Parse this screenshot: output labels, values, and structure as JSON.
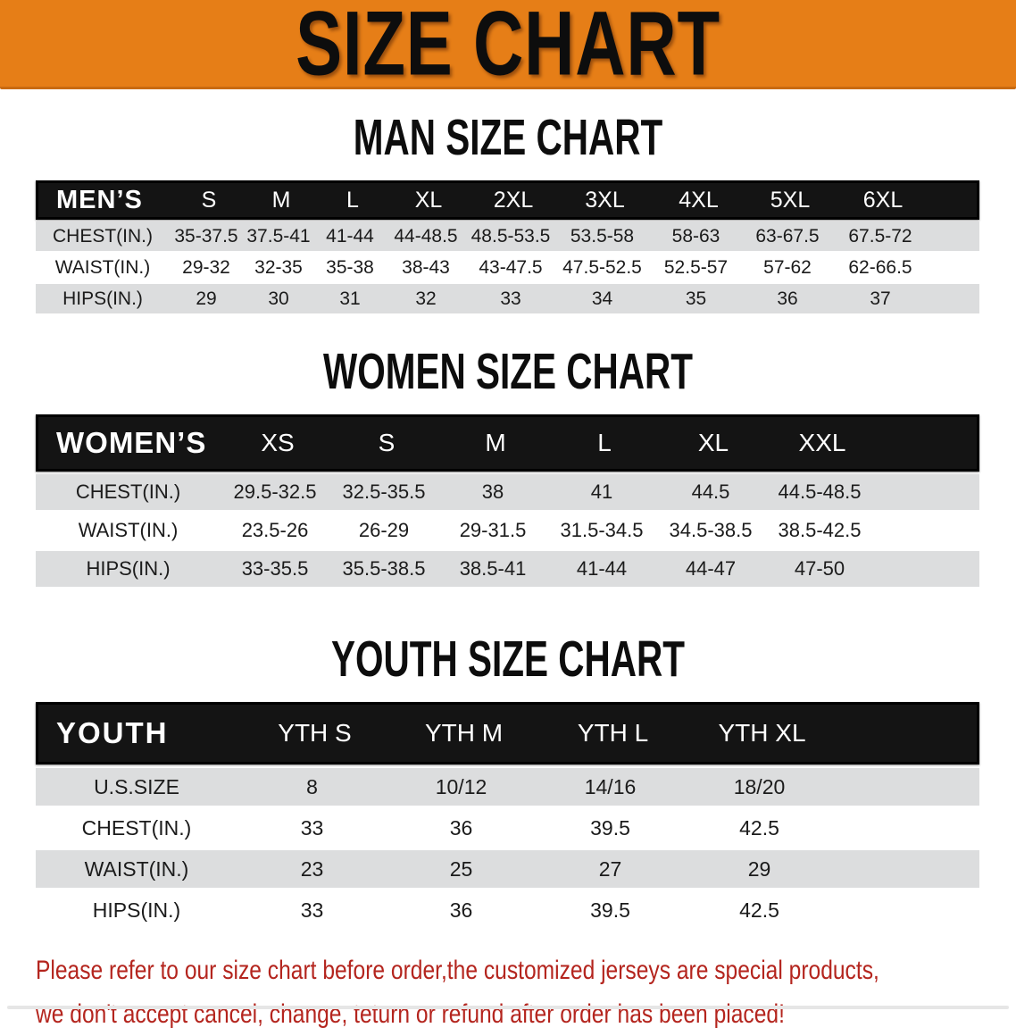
{
  "banner": {
    "title": "SIZE CHART"
  },
  "sections": {
    "men": {
      "title": "MAN SIZE CHART"
    },
    "women": {
      "title": "WOMEN SIZE CHART"
    },
    "youth": {
      "title": "YOUTH SIZE CHART"
    }
  },
  "tables": {
    "men": {
      "corner": "MEN’S",
      "columns": [
        "S",
        "M",
        "L",
        "XL",
        "2XL",
        "3XL",
        "4XL",
        "5XL",
        "6XL"
      ],
      "rows": [
        {
          "label": "CHEST(IN.)",
          "values": [
            "35-37.5",
            "37.5-41",
            "41-44",
            "44-48.5",
            "48.5-53.5",
            "53.5-58",
            "58-63",
            "63-67.5",
            "67.5-72"
          ]
        },
        {
          "label": "WAIST(IN.)",
          "values": [
            "29-32",
            "32-35",
            "35-38",
            "38-43",
            "43-47.5",
            "47.5-52.5",
            "52.5-57",
            "57-62",
            "62-66.5"
          ]
        },
        {
          "label": "HIPS(IN.)",
          "values": [
            "29",
            "30",
            "31",
            "32",
            "33",
            "34",
            "35",
            "36",
            "37"
          ]
        }
      ]
    },
    "women": {
      "corner": "WOMEN’S",
      "columns": [
        "XS",
        "S",
        "M",
        "L",
        "XL",
        "XXL"
      ],
      "rows": [
        {
          "label": "CHEST(IN.)",
          "values": [
            "29.5-32.5",
            "32.5-35.5",
            "38",
            "41",
            "44.5",
            "44.5-48.5"
          ]
        },
        {
          "label": "WAIST(IN.)",
          "values": [
            "23.5-26",
            "26-29",
            "29-31.5",
            "31.5-34.5",
            "34.5-38.5",
            "38.5-42.5"
          ]
        },
        {
          "label": "HIPS(IN.)",
          "values": [
            "33-35.5",
            "35.5-38.5",
            "38.5-41",
            "41-44",
            "44-47",
            "47-50"
          ]
        }
      ]
    },
    "youth": {
      "corner": "YOUTH",
      "columns": [
        "YTH S",
        "YTH M",
        "YTH L",
        "YTH XL"
      ],
      "rows": [
        {
          "label": "U.S.SIZE",
          "values": [
            "8",
            "10/12",
            "14/16",
            "18/20"
          ]
        },
        {
          "label": "CHEST(IN.)",
          "values": [
            "33",
            "36",
            "39.5",
            "42.5"
          ]
        },
        {
          "label": "WAIST(IN.)",
          "values": [
            "23",
            "25",
            "27",
            "29"
          ]
        },
        {
          "label": "HIPS(IN.)",
          "values": [
            "33",
            "36",
            "39.5",
            "42.5"
          ]
        }
      ]
    }
  },
  "disclaimer": {
    "line1": "Please refer to our size chart before order,the customized jerseys are special products,",
    "line2": "we don't accept cancel, change, teturn or refund after order has been placed!"
  },
  "colors": {
    "banner_orange": "#e67e17",
    "banner_edge": "#c96a10",
    "header_black": "#141414",
    "row_gray": "#dcddde",
    "row_white": "#ffffff",
    "text_dark": "#1b1b1b",
    "disclaimer_red": "#b4251e",
    "title_black": "#0d0d0d"
  }
}
